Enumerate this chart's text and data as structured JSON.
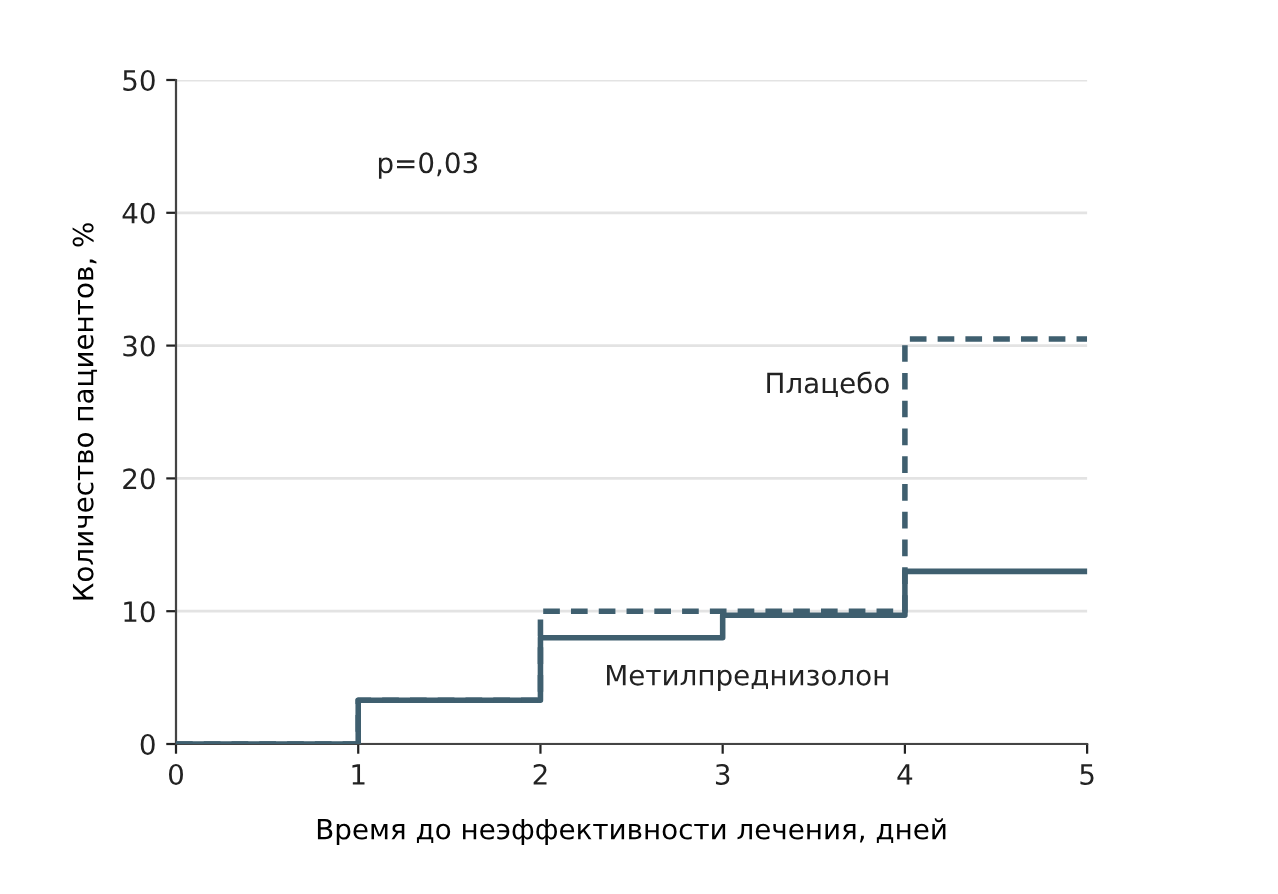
{
  "chart_data": {
    "type": "step",
    "xlabel": "Время до неэффективности лечения, дней",
    "ylabel": "Количество пациентов, %",
    "x": [
      0,
      1,
      2,
      3,
      4,
      5
    ],
    "series": [
      {
        "name": "Плацебо",
        "color": "#3f5f6f",
        "line_style": "dashed",
        "values": [
          0,
          3.3,
          10,
          10,
          30.5,
          30.5
        ]
      },
      {
        "name": "Метилпреднизолон",
        "color": "#3f5f6f",
        "line_style": "solid",
        "values": [
          0,
          3.3,
          8,
          9.7,
          13,
          13
        ]
      }
    ],
    "xlim": [
      0,
      5
    ],
    "ylim": [
      0,
      50
    ],
    "xticks": [
      0,
      1,
      2,
      3,
      4,
      5
    ],
    "yticks": [
      0,
      10,
      20,
      30,
      40,
      50
    ],
    "grid": "y",
    "annotations": [
      "p=0,03"
    ]
  }
}
